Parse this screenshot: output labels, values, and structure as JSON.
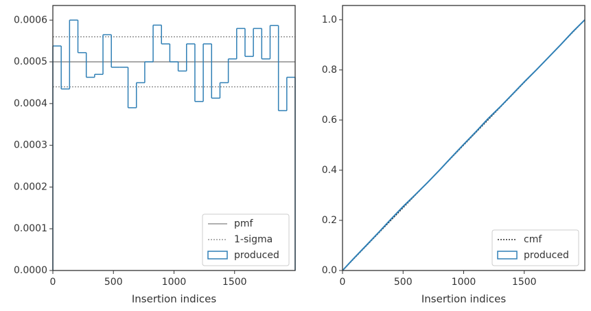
{
  "chart_data": [
    {
      "type": "histogram",
      "xlabel": "Insertion indices",
      "bins": [
        0,
        69.0,
        137.9,
        206.9,
        275.9,
        344.8,
        413.8,
        482.8,
        551.7,
        620.7,
        689.7,
        758.6,
        827.6,
        896.6,
        965.5,
        1034.5,
        1103.4,
        1172.4,
        1241.4,
        1310.3,
        1379.3,
        1448.3,
        1517.2,
        1586.2,
        1655.2,
        1724.1,
        1793.1,
        1862.1,
        1931.0,
        2000
      ],
      "series": [
        {
          "name": "produced",
          "color": "#2f7fb5",
          "values": [
            0.000538,
            0.000435,
            0.0006,
            0.000522,
            0.000463,
            0.00047,
            0.000565,
            0.000487,
            0.000487,
            0.00039,
            0.00045,
            0.0005,
            0.000588,
            0.000543,
            0.0005,
            0.000478,
            0.000543,
            0.000405,
            0.000543,
            0.000413,
            0.00045,
            0.000507,
            0.00058,
            0.000513,
            0.00058,
            0.000507,
            0.000587,
            0.000383,
            0.000463
          ]
        }
      ],
      "hlines": [
        {
          "name": "pmf",
          "color": "#808080",
          "style": "solid",
          "values": [
            0.0005
          ]
        },
        {
          "name": "1-sigma",
          "color": "#808080",
          "style": "dotted",
          "values": [
            0.00056,
            0.00044
          ]
        }
      ],
      "xlim": [
        0,
        2000
      ],
      "xticks": [
        0,
        500,
        1000,
        1500
      ],
      "ylim": [
        0,
        0.000635
      ],
      "yticks": [
        {
          "value": 0,
          "label": "0.0000"
        },
        {
          "value": 0.0001,
          "label": "0.0001"
        },
        {
          "value": 0.0002,
          "label": "0.0002"
        },
        {
          "value": 0.0003,
          "label": "0.0003"
        },
        {
          "value": 0.0004,
          "label": "0.0004"
        },
        {
          "value": 0.0005,
          "label": "0.0005"
        },
        {
          "value": 0.0006,
          "label": "0.0006"
        }
      ],
      "legend": "lower right"
    },
    {
      "type": "line",
      "xlabel": "Insertion indices",
      "series": [
        {
          "name": "cmf",
          "color": "#000000",
          "style": "dotted",
          "x": [
            0,
            2000
          ],
          "values": [
            0,
            1
          ]
        },
        {
          "name": "produced",
          "color": "#2f7fb5",
          "style": "solid",
          "x": [
            0,
            100,
            200,
            300,
            400,
            500,
            600,
            700,
            800,
            900,
            1000,
            1100,
            1200,
            1300,
            1400,
            1500,
            1600,
            1700,
            1800,
            1900,
            2000
          ],
          "values": [
            0,
            0.052,
            0.102,
            0.153,
            0.205,
            0.255,
            0.302,
            0.35,
            0.4,
            0.452,
            0.503,
            0.553,
            0.605,
            0.652,
            0.702,
            0.752,
            0.8,
            0.85,
            0.9,
            0.952,
            1.0
          ]
        }
      ],
      "xlim": [
        0,
        2000
      ],
      "xticks": [
        0,
        500,
        1000,
        1500
      ],
      "ylim": [
        0,
        1.057
      ],
      "yticks": [
        {
          "value": 0,
          "label": "0.0"
        },
        {
          "value": 0.2,
          "label": "0.2"
        },
        {
          "value": 0.4,
          "label": "0.4"
        },
        {
          "value": 0.6,
          "label": "0.6"
        },
        {
          "value": 0.8,
          "label": "0.8"
        },
        {
          "value": 1.0,
          "label": "1.0"
        }
      ],
      "legend": "lower right"
    }
  ]
}
